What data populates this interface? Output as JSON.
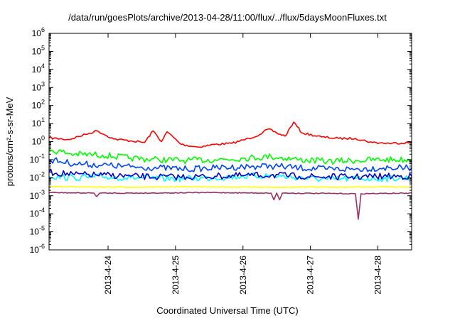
{
  "chart_data": {
    "type": "line",
    "title": "/data/run/goesPlots/archive/2013-04-28/11:00/flux/../flux/5daysMoonFluxes.txt",
    "xlabel": "Coordinated Universal Time (UTC)",
    "ylabel": "protons/cm²-s-sr-MeV",
    "yscale": "log",
    "ylim": [
      1e-06,
      1000000.0
    ],
    "xlim": [
      "2013-04-23 03:00",
      "2013-04-28 12:00"
    ],
    "grid": false,
    "legend": "none",
    "x_ticks": [
      "2013-4-24",
      "2013-4-25",
      "2013-4-26",
      "2013-4-27",
      "2013-4-28"
    ],
    "y_ticks": [
      {
        "base": "10",
        "exp": "6"
      },
      {
        "base": "10",
        "exp": "5"
      },
      {
        "base": "10",
        "exp": "4"
      },
      {
        "base": "10",
        "exp": "3"
      },
      {
        "base": "10",
        "exp": "2"
      },
      {
        "base": "10",
        "exp": "1"
      },
      {
        "base": "10",
        "exp": "0"
      },
      {
        "base": "10",
        "exp": "-1"
      },
      {
        "base": "10",
        "exp": "-2"
      },
      {
        "base": "10",
        "exp": "-3"
      },
      {
        "base": "10",
        "exp": "-4"
      },
      {
        "base": "10",
        "exp": "-5"
      },
      {
        "base": "10",
        "exp": "-6"
      }
    ],
    "series": [
      {
        "color": "#ff0000",
        "x": [
          "2013-04-23 03:00",
          "2013-04-23 10:00",
          "2013-04-23 16:00",
          "2013-04-23 20:00",
          "2013-04-24 02:00",
          "2013-04-24 08:00",
          "2013-04-24 13:00",
          "2013-04-24 16:00",
          "2013-04-24 19:00",
          "2013-04-24 21:00",
          "2013-04-25 02:00",
          "2013-04-25 08:00",
          "2013-04-25 14:00",
          "2013-04-25 20:00",
          "2013-04-26 02:00",
          "2013-04-26 06:00",
          "2013-04-26 09:00",
          "2013-04-26 12:00",
          "2013-04-26 15:00",
          "2013-04-26 18:00",
          "2013-04-26 21:00",
          "2013-04-27 04:00",
          "2013-04-27 10:00",
          "2013-04-27 16:00",
          "2013-04-27 22:00",
          "2013-04-28 04:00",
          "2013-04-28 12:00"
        ],
        "y": [
          1.6,
          1.3,
          2.5,
          4.0,
          1.4,
          1.1,
          0.9,
          4.0,
          1.0,
          3.5,
          0.7,
          0.5,
          0.7,
          0.8,
          1.5,
          2.5,
          5.0,
          3.0,
          2.0,
          12.0,
          3.0,
          1.8,
          1.5,
          1.5,
          0.9,
          0.8,
          0.9
        ]
      },
      {
        "color": "#00ff00",
        "x": [
          "2013-04-23 03:00",
          "2013-04-23 12:00",
          "2013-04-23 22:00",
          "2013-04-24 08:00",
          "2013-04-24 18:00",
          "2013-04-25 04:00",
          "2013-04-25 14:00",
          "2013-04-26 00:00",
          "2013-04-26 10:00",
          "2013-04-26 20:00",
          "2013-04-27 06:00",
          "2013-04-27 16:00",
          "2013-04-28 02:00",
          "2013-04-28 12:00"
        ],
        "y": [
          0.35,
          0.2,
          0.18,
          0.12,
          0.1,
          0.09,
          0.1,
          0.12,
          0.15,
          0.1,
          0.08,
          0.09,
          0.1,
          0.1
        ]
      },
      {
        "color": "#00ffff",
        "x": [
          "2013-04-23 03:00",
          "2013-04-23 12:00",
          "2013-04-23 22:00",
          "2013-04-24 08:00",
          "2013-04-24 18:00",
          "2013-04-25 04:00",
          "2013-04-25 14:00",
          "2013-04-26 00:00",
          "2013-04-26 10:00",
          "2013-04-26 20:00",
          "2013-04-27 06:00",
          "2013-04-27 16:00",
          "2013-04-28 02:00",
          "2013-04-28 12:00"
        ],
        "y": [
          0.012,
          0.01,
          0.011,
          0.01,
          0.009,
          0.009,
          0.01,
          0.012,
          0.013,
          0.01,
          0.008,
          0.009,
          0.009,
          0.01
        ]
      },
      {
        "color": "#0044ff",
        "x": [
          "2013-04-23 03:00",
          "2013-04-23 12:00",
          "2013-04-23 22:00",
          "2013-04-24 08:00",
          "2013-04-24 18:00",
          "2013-04-25 04:00",
          "2013-04-25 14:00",
          "2013-04-26 00:00",
          "2013-04-26 10:00",
          "2013-04-26 20:00",
          "2013-04-27 06:00",
          "2013-04-27 16:00",
          "2013-04-28 02:00",
          "2013-04-28 12:00"
        ],
        "y": [
          0.1,
          0.06,
          0.05,
          0.04,
          0.035,
          0.03,
          0.035,
          0.04,
          0.045,
          0.035,
          0.03,
          0.03,
          0.035,
          0.035
        ]
      },
      {
        "color": "#0000cc",
        "x": [
          "2013-04-23 03:00",
          "2013-04-23 12:00",
          "2013-04-23 22:00",
          "2013-04-24 08:00",
          "2013-04-24 18:00",
          "2013-04-25 04:00",
          "2013-04-25 14:00",
          "2013-04-26 00:00",
          "2013-04-26 10:00",
          "2013-04-26 20:00",
          "2013-04-27 06:00",
          "2013-04-27 16:00",
          "2013-04-28 02:00",
          "2013-04-28 12:00"
        ],
        "y": [
          0.02,
          0.015,
          0.014,
          0.012,
          0.011,
          0.011,
          0.012,
          0.013,
          0.014,
          0.012,
          0.011,
          0.011,
          0.012,
          0.012
        ]
      },
      {
        "color": "#ffff00",
        "x": [
          "2013-04-23 03:00",
          "2013-04-24 03:00",
          "2013-04-25 03:00",
          "2013-04-26 03:00",
          "2013-04-27 03:00",
          "2013-04-28 03:00",
          "2013-04-28 12:00"
        ],
        "y": [
          0.0032,
          0.003,
          0.0031,
          0.003,
          0.003,
          0.0031,
          0.003
        ]
      },
      {
        "color": "#993366",
        "x": [
          "2013-04-23 03:00",
          "2013-04-23 19:00",
          "2013-04-23 20:00",
          "2013-04-23 21:00",
          "2013-04-24 12:00",
          "2013-04-25 12:00",
          "2013-04-26 10:00",
          "2013-04-26 11:00",
          "2013-04-26 12:00",
          "2013-04-26 13:00",
          "2013-04-26 14:00",
          "2013-04-27 16:00",
          "2013-04-27 17:00",
          "2013-04-27 18:00",
          "2013-04-28 12:00"
        ],
        "y": [
          0.0015,
          0.0014,
          0.0009,
          0.0014,
          0.0014,
          0.0015,
          0.0014,
          0.0006,
          0.0014,
          0.0006,
          0.0014,
          0.0013,
          5e-05,
          0.0013,
          0.0014
        ]
      }
    ]
  }
}
